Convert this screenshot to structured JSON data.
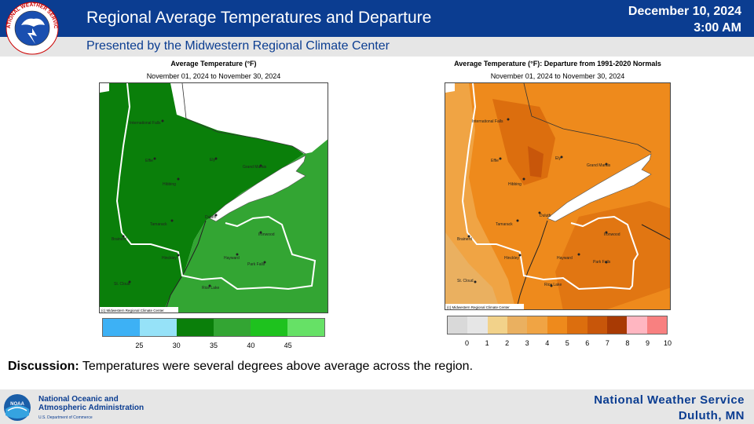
{
  "header": {
    "title": "Regional Average Temperatures and Departure",
    "subtitle": "Presented by the Midwestern Regional Climate Center",
    "date": "December 10, 2024",
    "time": "3:00 AM",
    "logo_text": "NATIONAL WEATHER SERVICE"
  },
  "left_map": {
    "title": "Average Temperature (°F)",
    "period": "November 01, 2024 to November 30, 2024",
    "copyright": "(c) Midwestern Regional Climate Center",
    "legend": {
      "colors": [
        "#3db1f5",
        "#96e2f8",
        "#0a7f0a",
        "#33a533",
        "#1ec21e",
        "#66e166"
      ],
      "ticks": [
        "25",
        "30",
        "35",
        "40",
        "45"
      ]
    }
  },
  "right_map": {
    "title": "Average Temperature (°F): Departure from 1991-2020 Normals",
    "period": "November 01, 2024 to November 30, 2024",
    "copyright": "(c) Midwestern Regional Climate Center",
    "legend": {
      "colors": [
        "#d9d9d9",
        "#e6e6e6",
        "#f2d28a",
        "#eab060",
        "#f0a444",
        "#ee8a1c",
        "#dc6e0e",
        "#c8560a",
        "#a83a04",
        "#ffb6c1",
        "#f88080"
      ],
      "ticks": [
        "0",
        "1",
        "2",
        "3",
        "4",
        "5",
        "6",
        "7",
        "8",
        "9",
        "10"
      ]
    }
  },
  "cities": {
    "international_falls": "International Falls",
    "ely": "Ely",
    "effie": "Effie",
    "hibbing": "Hibbing",
    "grand_marais": "Grand Marais",
    "duluth": "Duluth",
    "tamarack": "Tamarack",
    "brainerd": "Brainerd",
    "hinckley": "Hinckley",
    "hayward": "Hayward",
    "ironwood": "Ironwood",
    "park_falls": "Park Falls",
    "st_cloud": "St. Cloud",
    "rice_lake": "Rice Lake"
  },
  "discussion": {
    "label": "Discussion:",
    "text": " Temperatures were several degrees above average across the region."
  },
  "footer": {
    "noaa_line1": "National Oceanic and",
    "noaa_line2": "Atmospheric Administration",
    "noaa_dept": "U.S. Department of Commerce",
    "noaa_logo_text": "NOAA",
    "nws_line1": "National Weather Service",
    "nws_line2": "Duluth, MN"
  }
}
